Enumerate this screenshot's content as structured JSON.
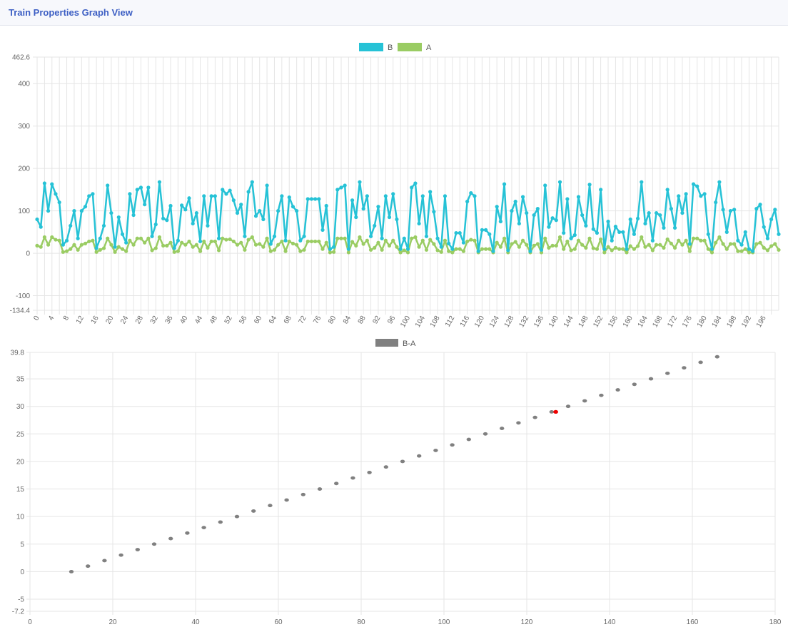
{
  "header": {
    "title": "Train Properties Graph View"
  },
  "colors": {
    "B": "#26c2d6",
    "A": "#9acc63",
    "diff": "#808080",
    "highlight": "#ee0000"
  },
  "chart_data": [
    {
      "type": "line",
      "x": {
        "min": 0,
        "max": 199,
        "tick_step": 4
      },
      "ylim": [
        -134.4,
        462.6
      ],
      "yticks": [
        -134.4,
        -100,
        0,
        100,
        200,
        300,
        400,
        462.6
      ],
      "grid": true,
      "legend": "top-center",
      "series": [
        {
          "name": "B",
          "color": "#26c2d6",
          "values": [
            80,
            62,
            165,
            100,
            163,
            140,
            120,
            20,
            30,
            65,
            100,
            35,
            100,
            110,
            135,
            140,
            12,
            35,
            65,
            160,
            95,
            15,
            85,
            45,
            25,
            140,
            90,
            150,
            155,
            115,
            155,
            40,
            68,
            168,
            82,
            78,
            112,
            12,
            30,
            113,
            103,
            130,
            70,
            95,
            28,
            135,
            65,
            135,
            135,
            35,
            150,
            140,
            148,
            125,
            95,
            115,
            40,
            145,
            168,
            88,
            100,
            80,
            160,
            22,
            40,
            100,
            135,
            30,
            132,
            110,
            100,
            30,
            40,
            128,
            128,
            128,
            128,
            55,
            112,
            10,
            15,
            150,
            155,
            160,
            10,
            125,
            85,
            168,
            105,
            135,
            40,
            65,
            110,
            35,
            135,
            85,
            140,
            80,
            10,
            35,
            10,
            155,
            165,
            70,
            135,
            40,
            145,
            98,
            35,
            15,
            135,
            23,
            10,
            48,
            48,
            25,
            122,
            142,
            135,
            5,
            55,
            55,
            45,
            5,
            110,
            75,
            163,
            7,
            100,
            122,
            70,
            133,
            95,
            5,
            90,
            105,
            8,
            160,
            62,
            83,
            78,
            168,
            48,
            128,
            35,
            43,
            133,
            90,
            65,
            162,
            57,
            48,
            150,
            10,
            75,
            30,
            63,
            50,
            50,
            10,
            80,
            45,
            82,
            168,
            70,
            95,
            30,
            95,
            90,
            60,
            150,
            105,
            60,
            135,
            95,
            140,
            22,
            163,
            158,
            135,
            140,
            45,
            10,
            120,
            168,
            103,
            50,
            100,
            103,
            30,
            20,
            50,
            10,
            5,
            105,
            115,
            62,
            35,
            80,
            103,
            45
          ]
        },
        {
          "name": "A",
          "color": "#9acc63",
          "values": [
            18,
            15,
            38,
            20,
            38,
            32,
            30,
            3,
            5,
            10,
            20,
            8,
            20,
            23,
            28,
            30,
            3,
            8,
            12,
            35,
            20,
            3,
            15,
            10,
            5,
            30,
            20,
            35,
            35,
            25,
            35,
            7,
            12,
            38,
            18,
            18,
            25,
            3,
            5,
            25,
            20,
            28,
            15,
            20,
            5,
            28,
            13,
            28,
            28,
            7,
            35,
            32,
            33,
            28,
            20,
            25,
            8,
            32,
            38,
            20,
            22,
            15,
            35,
            5,
            8,
            20,
            28,
            5,
            28,
            23,
            20,
            5,
            8,
            28,
            28,
            28,
            28,
            10,
            25,
            2,
            3,
            35,
            35,
            35,
            2,
            27,
            18,
            38,
            22,
            30,
            8,
            13,
            25,
            8,
            30,
            18,
            30,
            15,
            2,
            7,
            2,
            35,
            38,
            15,
            30,
            8,
            32,
            22,
            7,
            3,
            30,
            5,
            2,
            10,
            10,
            5,
            28,
            32,
            30,
            2,
            10,
            10,
            10,
            2,
            25,
            15,
            35,
            2,
            22,
            27,
            15,
            30,
            20,
            2,
            18,
            22,
            2,
            35,
            13,
            18,
            18,
            38,
            10,
            28,
            7,
            10,
            30,
            20,
            13,
            35,
            12,
            10,
            33,
            2,
            15,
            7,
            13,
            10,
            10,
            2,
            17,
            10,
            17,
            38,
            15,
            20,
            7,
            20,
            20,
            13,
            33,
            23,
            13,
            30,
            20,
            30,
            5,
            35,
            35,
            30,
            30,
            10,
            2,
            25,
            38,
            22,
            10,
            22,
            22,
            5,
            5,
            10,
            2,
            2,
            22,
            25,
            13,
            7,
            17,
            22,
            8
          ]
        }
      ]
    },
    {
      "type": "scatter",
      "xlim": [
        0,
        180
      ],
      "xticks": [
        0,
        20,
        40,
        60,
        80,
        100,
        120,
        140,
        160,
        180
      ],
      "ylim": [
        -7.2,
        39.8
      ],
      "yticks": [
        -7.2,
        -5,
        0,
        5,
        10,
        15,
        20,
        25,
        30,
        35,
        39.8
      ],
      "grid": true,
      "legend": "top-center",
      "series": [
        {
          "name": "B-A",
          "color": "#808080",
          "points": [
            [
              10,
              0
            ],
            [
              14,
              1
            ],
            [
              18,
              2
            ],
            [
              22,
              3
            ],
            [
              26,
              4
            ],
            [
              30,
              5
            ],
            [
              34,
              6
            ],
            [
              38,
              7
            ],
            [
              42,
              8
            ],
            [
              46,
              9
            ],
            [
              50,
              10
            ],
            [
              54,
              11
            ],
            [
              58,
              12
            ],
            [
              62,
              13
            ],
            [
              66,
              14
            ],
            [
              70,
              15
            ],
            [
              74,
              16
            ],
            [
              78,
              17
            ],
            [
              82,
              18
            ],
            [
              86,
              19
            ],
            [
              90,
              20
            ],
            [
              94,
              21
            ],
            [
              98,
              22
            ],
            [
              102,
              23
            ],
            [
              106,
              24
            ],
            [
              110,
              25
            ],
            [
              114,
              26
            ],
            [
              118,
              27
            ],
            [
              122,
              28
            ],
            [
              126,
              29
            ],
            [
              130,
              30
            ],
            [
              134,
              31
            ],
            [
              138,
              32
            ],
            [
              142,
              33
            ],
            [
              146,
              34
            ],
            [
              150,
              35
            ],
            [
              154,
              36
            ],
            [
              158,
              37
            ],
            [
              162,
              38
            ],
            [
              166,
              39
            ]
          ]
        }
      ],
      "highlight_points": [
        [
          127,
          29
        ]
      ]
    }
  ]
}
